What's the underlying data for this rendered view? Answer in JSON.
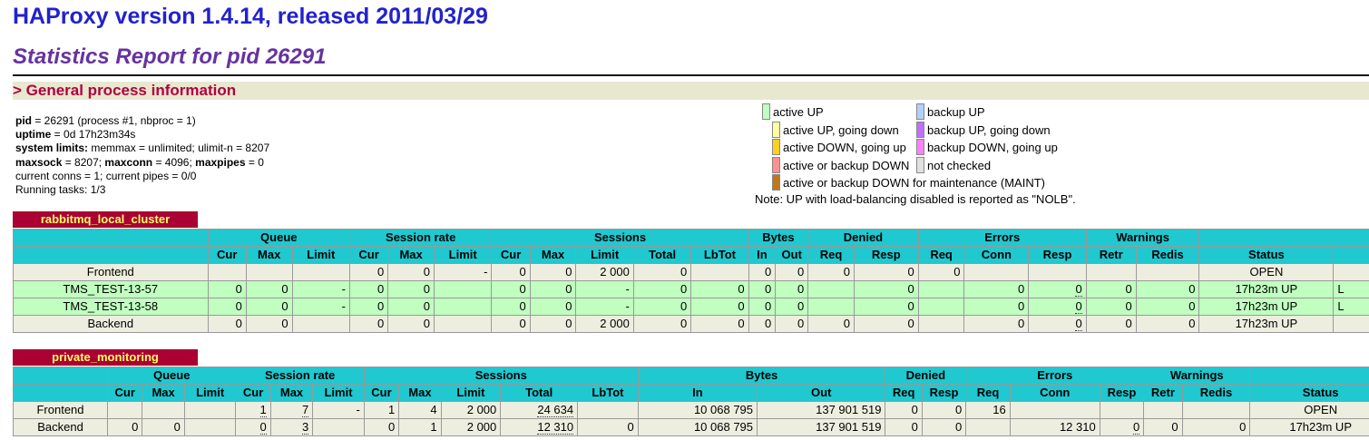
{
  "header": {
    "title": "HAProxy version 1.4.14, released 2011/03/29",
    "subtitle": "Statistics Report for pid 26291",
    "section": "> General process information"
  },
  "info": {
    "pid_label": "pid",
    "pid_text": " = 26291 (process #1, nbproc = 1)",
    "uptime_label": "uptime",
    "uptime_text": " = 0d 17h23m34s",
    "limits_label": "system limits:",
    "limits_text": " memmax = unlimited; ulimit-n = 8207",
    "maxsock_label": "maxsock",
    "maxsock_text": " = 8207; ",
    "maxconn_label": "maxconn",
    "maxconn_text": " = 4096; ",
    "maxpipes_label": "maxpipes",
    "maxpipes_text": " = 0",
    "conns_text": "current conns = 1; current pipes = 0/0",
    "tasks_text": "Running tasks: 1/3"
  },
  "legend": {
    "items": [
      {
        "label": "active UP",
        "color": "#c0ffc0"
      },
      {
        "label": "active UP, going down",
        "color": "#ffffa0"
      },
      {
        "label": "active DOWN, going up",
        "color": "#ffd020"
      },
      {
        "label": "active or backup DOWN",
        "color": "#ff9090"
      },
      {
        "label": "active or backup DOWN for maintenance (MAINT)",
        "color": "#c07820"
      },
      {
        "label": "backup UP",
        "color": "#b0d0ff"
      },
      {
        "label": "backup UP, going down",
        "color": "#c070ff"
      },
      {
        "label": "backup DOWN, going up",
        "color": "#ff80ff"
      },
      {
        "label": "not checked",
        "color": "#e0e0e0"
      }
    ],
    "note": "Note: UP with load-balancing disabled is reported as \"NOLB\"."
  },
  "groups": {
    "queue": "Queue",
    "session_rate": "Session rate",
    "sessions": "Sessions",
    "bytes": "Bytes",
    "denied": "Denied",
    "errors": "Errors",
    "warnings": "Warnings"
  },
  "cols": {
    "cur": "Cur",
    "max": "Max",
    "limit": "Limit",
    "total": "Total",
    "lbtot": "LbTot",
    "in": "In",
    "out": "Out",
    "req": "Req",
    "resp": "Resp",
    "conn": "Conn",
    "retr": "Retr",
    "redis": "Redis",
    "status": "Status"
  },
  "proxy1": {
    "name": "rabbitmq_local_cluster",
    "rows": [
      {
        "name": "Frontend",
        "q_cur": "",
        "q_max": "",
        "q_lim": "",
        "r_cur": "0",
        "r_max": "0",
        "r_lim": "-",
        "s_cur": "0",
        "s_max": "0",
        "s_lim": "2 000",
        "s_tot": "0",
        "s_lb": "",
        "b_in": "0",
        "b_out": "0",
        "d_req": "0",
        "d_resp": "0",
        "e_req": "0",
        "e_conn": "",
        "e_resp": "",
        "w_retr": "",
        "w_redis": "",
        "status": "OPEN",
        "extra": ""
      },
      {
        "name": "TMS_TEST-13-57",
        "q_cur": "0",
        "q_max": "0",
        "q_lim": "-",
        "r_cur": "0",
        "r_max": "0",
        "r_lim": "",
        "s_cur": "0",
        "s_max": "0",
        "s_lim": "-",
        "s_tot": "0",
        "s_lb": "0",
        "b_in": "0",
        "b_out": "0",
        "d_req": "",
        "d_resp": "0",
        "e_req": "",
        "e_conn": "0",
        "e_resp": "0",
        "w_retr": "0",
        "w_redis": "0",
        "status": "17h23m UP",
        "extra": "L"
      },
      {
        "name": "TMS_TEST-13-58",
        "q_cur": "0",
        "q_max": "0",
        "q_lim": "-",
        "r_cur": "0",
        "r_max": "0",
        "r_lim": "",
        "s_cur": "0",
        "s_max": "0",
        "s_lim": "-",
        "s_tot": "0",
        "s_lb": "0",
        "b_in": "0",
        "b_out": "0",
        "d_req": "",
        "d_resp": "0",
        "e_req": "",
        "e_conn": "0",
        "e_resp": "0",
        "w_retr": "0",
        "w_redis": "0",
        "status": "17h23m UP",
        "extra": "L"
      },
      {
        "name": "Backend",
        "q_cur": "0",
        "q_max": "0",
        "q_lim": "",
        "r_cur": "0",
        "r_max": "0",
        "r_lim": "",
        "s_cur": "0",
        "s_max": "0",
        "s_lim": "2 000",
        "s_tot": "0",
        "s_lb": "0",
        "b_in": "0",
        "b_out": "0",
        "d_req": "0",
        "d_resp": "0",
        "e_req": "",
        "e_conn": "0",
        "e_resp": "0",
        "w_retr": "0",
        "w_redis": "0",
        "status": "17h23m UP",
        "extra": ""
      }
    ]
  },
  "proxy2": {
    "name": "private_monitoring",
    "rows": [
      {
        "name": "Frontend",
        "q_cur": "",
        "q_max": "",
        "q_lim": "",
        "r_cur": "1",
        "r_max": "7",
        "r_lim": "-",
        "s_cur": "1",
        "s_max": "4",
        "s_lim": "2 000",
        "s_tot": "24 634",
        "s_lb": "",
        "b_in": "10 068 795",
        "b_out": "137 901 519",
        "d_req": "0",
        "d_resp": "0",
        "e_req": "16",
        "e_conn": "",
        "e_resp": "",
        "w_retr": "",
        "w_redis": "",
        "status": "OPEN"
      },
      {
        "name": "Backend",
        "q_cur": "0",
        "q_max": "0",
        "q_lim": "",
        "r_cur": "0",
        "r_max": "3",
        "r_lim": "",
        "s_cur": "0",
        "s_max": "1",
        "s_lim": "2 000",
        "s_tot": "12 310",
        "s_lb": "0",
        "b_in": "10 068 795",
        "b_out": "137 901 519",
        "d_req": "0",
        "d_resp": "0",
        "e_req": "",
        "e_conn": "12 310",
        "e_resp": "0",
        "w_retr": "0",
        "w_redis": "0",
        "status": "17h23m UP"
      }
    ]
  }
}
